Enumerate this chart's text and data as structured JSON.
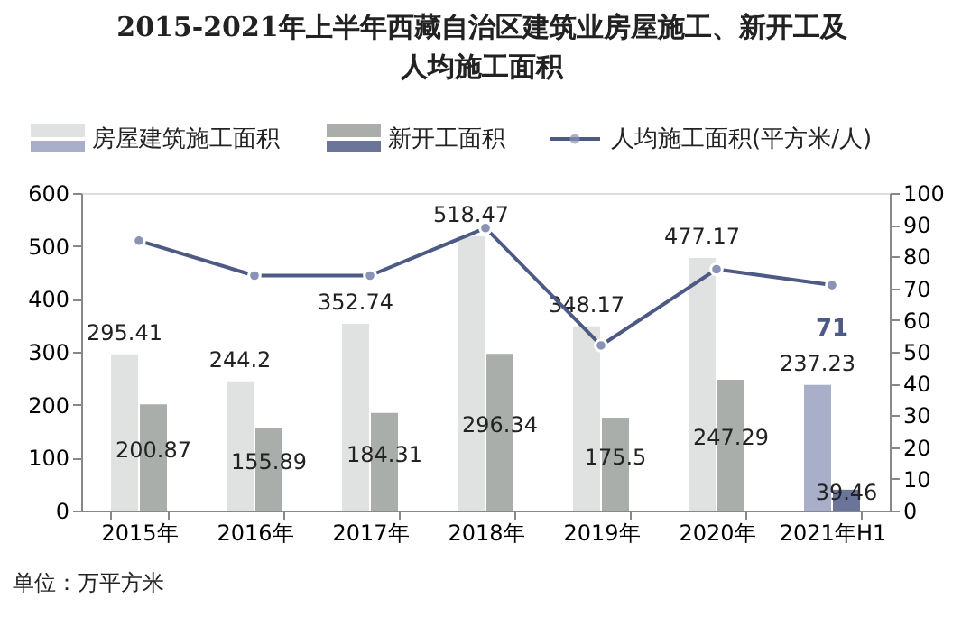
{
  "chart_data": {
    "type": "bar",
    "title": "2015-2021年上半年西藏自治区建筑业房屋施工、新开工及人均施工面积",
    "categories": [
      "2015年",
      "2016年",
      "2017年",
      "2018年",
      "2019年",
      "2020年",
      "2021年H1"
    ],
    "ylim": [
      0,
      600
    ],
    "yticks": [
      0,
      100,
      200,
      300,
      400,
      500,
      600
    ],
    "y2lim": [
      0,
      100
    ],
    "y2ticks": [
      0,
      10,
      20,
      30,
      40,
      50,
      60,
      70,
      80,
      90,
      100
    ],
    "grid": false,
    "legend": "top",
    "annotations": [
      "单位：万平方米"
    ],
    "series": [
      {
        "name": "房屋建筑施工面积",
        "colors": [
          "#e0e2e1",
          "#e0e2e1",
          "#e0e2e1",
          "#e0e2e1",
          "#e0e2e1",
          "#e0e2e1",
          "#a9afc9"
        ],
        "values": [
          295.41,
          244.2,
          352.74,
          518.47,
          348.17,
          477.17,
          237.23
        ],
        "value_labels": [
          "295.41",
          "244.2",
          "352.74",
          "518.47",
          "348.17",
          "477.17",
          "237.23"
        ]
      },
      {
        "name": "新开工面积",
        "colors": [
          "#a9aeab",
          "#a9aeab",
          "#a9aeab",
          "#a9aeab",
          "#a9aeab",
          "#a9aeab",
          "#6b7499"
        ],
        "values": [
          200.87,
          155.89,
          184.31,
          296.34,
          175.5,
          247.29,
          39.46
        ],
        "value_labels": [
          "200.87",
          "155.89",
          "184.31",
          "296.34",
          "175.5",
          "247.29",
          "39.46"
        ]
      },
      {
        "name": "人均施工面积(平方米/人)",
        "type": "line",
        "axis": "y2",
        "color": "#4d5a85",
        "marker": "circle",
        "values": [
          85,
          74,
          74,
          89,
          52,
          76,
          71
        ],
        "value_labels": [
          null,
          null,
          null,
          null,
          null,
          null,
          "71"
        ]
      }
    ]
  }
}
